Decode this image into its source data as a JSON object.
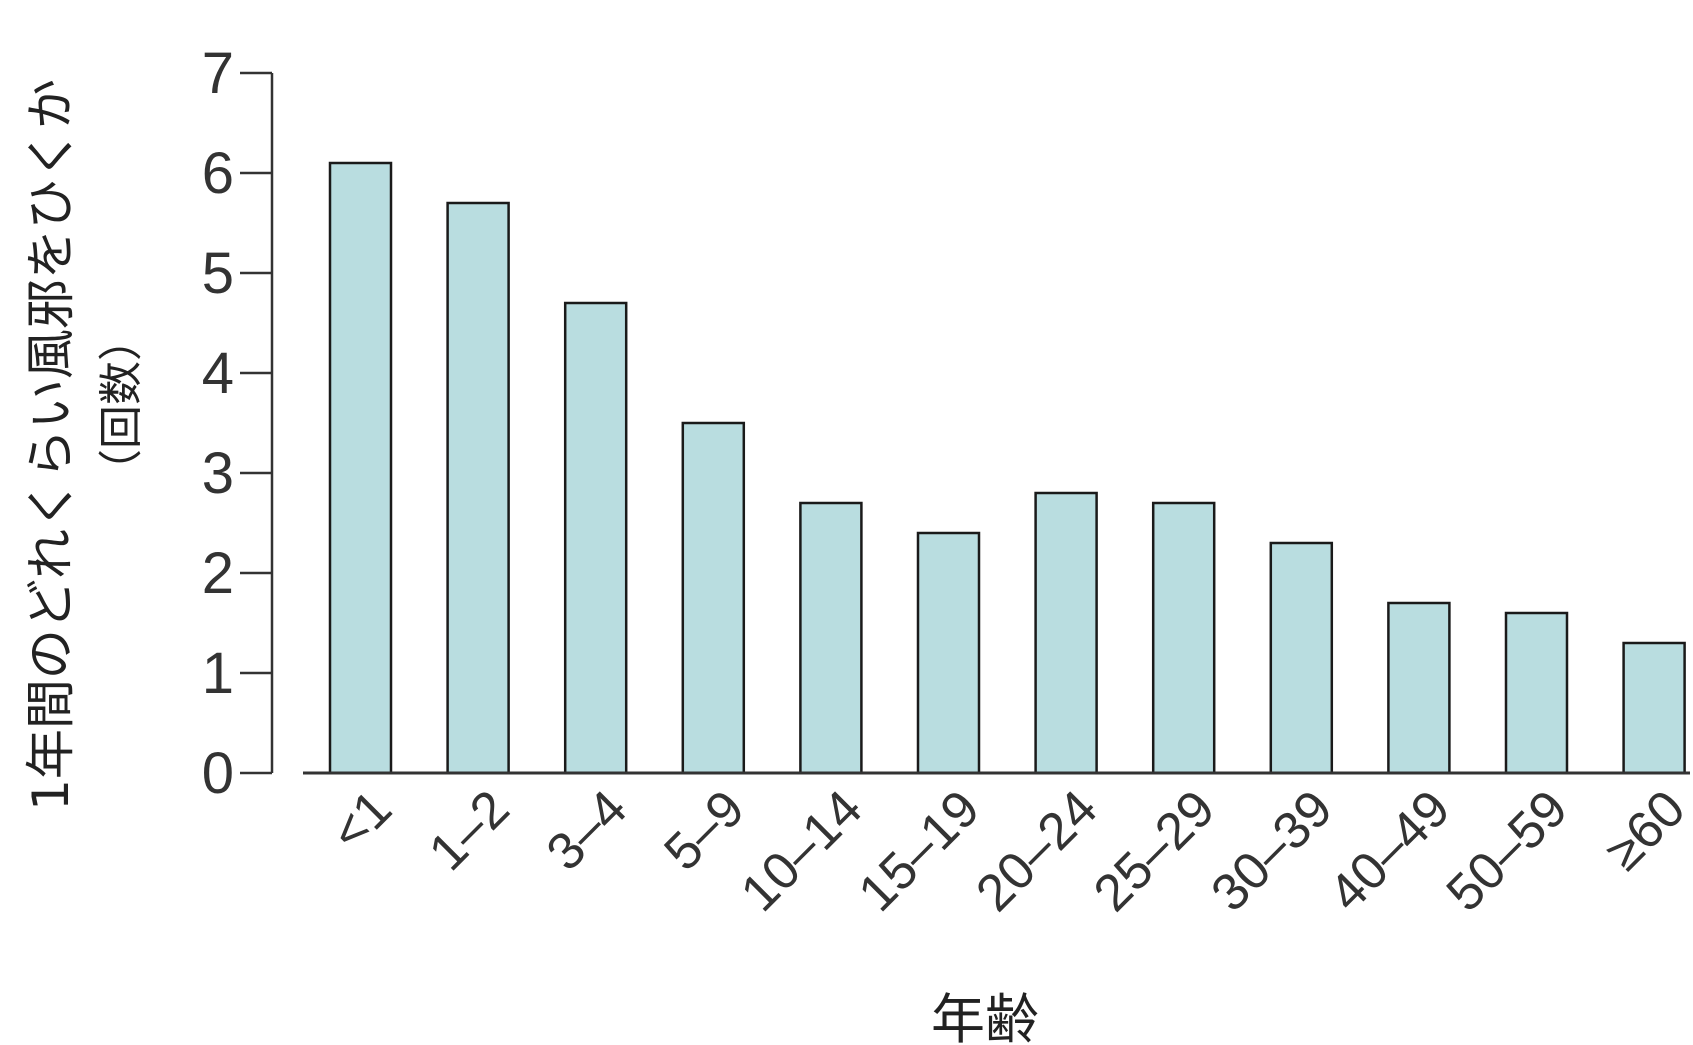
{
  "chart_data": {
    "type": "bar",
    "title": "",
    "xlabel": "年齢",
    "ylabel": "1年間のどれくらい風邪をひくか",
    "ylabel_unit": "（回数）",
    "categories": [
      "<1",
      "1–2",
      "3–4",
      "5–9",
      "10–14",
      "15–19",
      "20–24",
      "25–29",
      "30–39",
      "40–49",
      "50–59",
      "≥60"
    ],
    "values": [
      6.1,
      5.7,
      4.7,
      3.5,
      2.7,
      2.4,
      2.8,
      2.7,
      2.3,
      1.7,
      1.6,
      1.3
    ],
    "ylim": [
      0,
      7
    ],
    "yticks": [
      0,
      1,
      2,
      3,
      4,
      5,
      6,
      7
    ],
    "grid": false,
    "legend": "none",
    "colors": {
      "bar_fill": "#b9dde0",
      "bar_stroke": "#1a1a1a",
      "axis": "#333333"
    }
  }
}
